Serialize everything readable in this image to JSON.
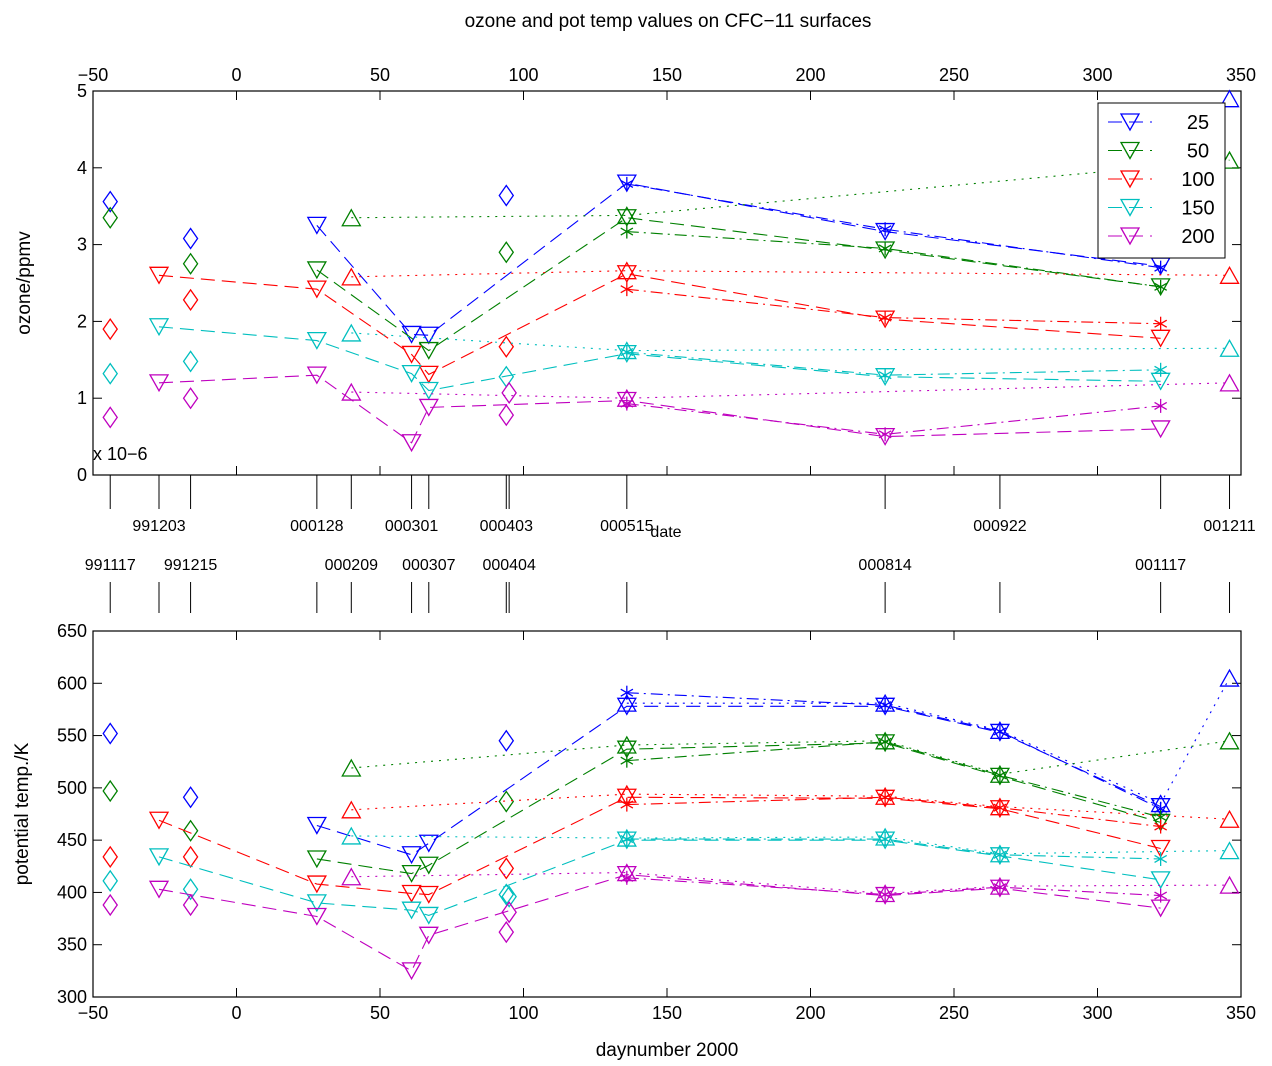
{
  "figure": {
    "title": "ozone and pot temp values on CFC−11 surfaces",
    "date_axis_label": "date"
  },
  "colors": {
    "25": "#0000ff",
    "50": "#008000",
    "100": "#ff0000",
    "150": "#00bfbf",
    "200": "#bf00bf"
  },
  "legend": {
    "position": "top-right",
    "entries": [
      "25",
      "50",
      "100",
      "150",
      "200"
    ],
    "marker": "down-triangle"
  },
  "date_ticks": {
    "days": [
      -44,
      -27,
      -16,
      28,
      40,
      61,
      67,
      94,
      95,
      136,
      226,
      266,
      322,
      346
    ],
    "upper_labels": [
      {
        "day": -27,
        "text": "991203"
      },
      {
        "day": 28,
        "text": "000128"
      },
      {
        "day": 61,
        "text": "000301"
      },
      {
        "day": 94,
        "text": "000403"
      },
      {
        "day": 136,
        "text": "000515"
      },
      {
        "day": 266,
        "text": "000922"
      },
      {
        "day": 346,
        "text": "001211"
      }
    ],
    "lower_labels": [
      {
        "day": -44,
        "text": "991117"
      },
      {
        "day": -16,
        "text": "991215"
      },
      {
        "day": 40,
        "text": "000209"
      },
      {
        "day": 67,
        "text": "000307"
      },
      {
        "day": 95,
        "text": "000404"
      },
      {
        "day": 226,
        "text": "000814"
      },
      {
        "day": 322,
        "text": "001117"
      }
    ]
  },
  "chart_data": [
    {
      "type": "line",
      "ylabel": "ozone/ppmv",
      "xlim": [
        -50,
        350
      ],
      "ylim": [
        0,
        5
      ],
      "y_multiplier_label": "x 10−6",
      "x_ticks": [
        "−50",
        "0",
        "50",
        "100",
        "150",
        "200",
        "250",
        "300",
        "350"
      ],
      "y_ticks": [
        "0",
        "1",
        "2",
        "3",
        "4",
        "5"
      ],
      "series": [
        {
          "name": "25",
          "down": [
            [
              28,
              3.25
            ],
            [
              61,
              1.83
            ],
            [
              67,
              1.82
            ],
            [
              136,
              3.8
            ],
            [
              226,
              3.17
            ],
            [
              322,
              2.72
            ]
          ],
          "up": [
            [
              346,
              4.9
            ]
          ],
          "diamond": [
            [
              -44,
              3.56
            ],
            [
              -16,
              3.08
            ],
            [
              94,
              3.64
            ]
          ],
          "star": [
            [
              136,
              3.79
            ],
            [
              226,
              3.2
            ],
            [
              322,
              2.7
            ]
          ]
        },
        {
          "name": "50",
          "down": [
            [
              28,
              2.67
            ],
            [
              67,
              1.62
            ],
            [
              136,
              3.35
            ],
            [
              226,
              2.93
            ],
            [
              322,
              2.45
            ]
          ],
          "up": [
            [
              40,
              3.35
            ],
            [
              136,
              3.38
            ],
            [
              346,
              4.1
            ]
          ],
          "diamond": [
            [
              -44,
              3.35
            ],
            [
              -16,
              2.75
            ],
            [
              94,
              2.9
            ]
          ],
          "star": [
            [
              136,
              3.17
            ],
            [
              226,
              2.95
            ],
            [
              322,
              2.45
            ]
          ]
        },
        {
          "name": "100",
          "down": [
            [
              -27,
              2.6
            ],
            [
              28,
              2.42
            ],
            [
              61,
              1.57
            ],
            [
              67,
              1.31
            ],
            [
              136,
              2.62
            ],
            [
              226,
              2.03
            ],
            [
              322,
              1.78
            ]
          ],
          "up": [
            [
              40,
              2.58
            ],
            [
              136,
              2.66
            ],
            [
              346,
              2.6
            ]
          ],
          "diamond": [
            [
              -44,
              1.9
            ],
            [
              -16,
              2.28
            ],
            [
              94,
              1.67
            ]
          ],
          "star": [
            [
              136,
              2.42
            ],
            [
              226,
              2.05
            ],
            [
              322,
              1.97
            ]
          ]
        },
        {
          "name": "150",
          "down": [
            [
              -27,
              1.93
            ],
            [
              28,
              1.75
            ],
            [
              61,
              1.32
            ],
            [
              67,
              1.1
            ],
            [
              136,
              1.58
            ],
            [
              226,
              1.28
            ],
            [
              322,
              1.22
            ]
          ],
          "up": [
            [
              40,
              1.85
            ],
            [
              136,
              1.62
            ],
            [
              346,
              1.65
            ]
          ],
          "diamond": [
            [
              -44,
              1.32
            ],
            [
              -16,
              1.48
            ],
            [
              94,
              1.28
            ]
          ],
          "star": [
            [
              136,
              1.6
            ],
            [
              226,
              1.3
            ],
            [
              322,
              1.37
            ]
          ]
        },
        {
          "name": "200",
          "down": [
            [
              -27,
              1.2
            ],
            [
              28,
              1.3
            ],
            [
              61,
              0.42
            ],
            [
              67,
              0.88
            ],
            [
              136,
              0.97
            ],
            [
              226,
              0.5
            ],
            [
              322,
              0.6
            ]
          ],
          "up": [
            [
              40,
              1.08
            ],
            [
              136,
              1.0
            ],
            [
              346,
              1.2
            ]
          ],
          "diamond": [
            [
              -44,
              0.75
            ],
            [
              -16,
              1.0
            ],
            [
              94,
              0.78
            ],
            [
              95,
              1.07
            ]
          ],
          "star": [
            [
              136,
              0.93
            ],
            [
              226,
              0.53
            ],
            [
              322,
              0.9
            ]
          ]
        }
      ]
    },
    {
      "type": "line",
      "xlabel": "daynumber 2000",
      "ylabel": "potential temp./K",
      "xlim": [
        -50,
        350
      ],
      "ylim": [
        300,
        650
      ],
      "x_ticks": [
        "−50",
        "0",
        "50",
        "100",
        "150",
        "200",
        "250",
        "300",
        "350"
      ],
      "y_ticks": [
        "300",
        "350",
        "400",
        "450",
        "500",
        "550",
        "600",
        "650"
      ],
      "series": [
        {
          "name": "25",
          "down": [
            [
              28,
              464
            ],
            [
              61,
              436
            ],
            [
              67,
              447
            ],
            [
              136,
              578
            ],
            [
              226,
              578
            ],
            [
              266,
              553
            ],
            [
              322,
              482
            ]
          ],
          "up": [
            [
              136,
              581
            ],
            [
              226,
              581
            ],
            [
              266,
              555
            ],
            [
              322,
              485
            ],
            [
              346,
              605
            ]
          ],
          "diamond": [
            [
              -44,
              552
            ],
            [
              -16,
              491
            ],
            [
              94,
              545
            ]
          ],
          "star": [
            [
              136,
              591
            ],
            [
              226,
              579
            ],
            [
              266,
              554
            ],
            [
              322,
              480
            ]
          ]
        },
        {
          "name": "50",
          "down": [
            [
              28,
              432
            ],
            [
              61,
              418
            ],
            [
              67,
              426
            ],
            [
              136,
              537
            ],
            [
              226,
              543
            ],
            [
              266,
              511
            ],
            [
              322,
              467
            ]
          ],
          "up": [
            [
              40,
              519
            ],
            [
              136,
              541
            ],
            [
              226,
              545
            ],
            [
              266,
              513
            ],
            [
              346,
              545
            ]
          ],
          "diamond": [
            [
              -44,
              497
            ],
            [
              -16,
              459
            ],
            [
              94,
              487
            ]
          ],
          "star": [
            [
              136,
              526
            ],
            [
              226,
              544
            ],
            [
              266,
              512
            ],
            [
              322,
              472
            ]
          ]
        },
        {
          "name": "100",
          "down": [
            [
              -27,
              469
            ],
            [
              28,
              408
            ],
            [
              61,
              399
            ],
            [
              67,
              398
            ],
            [
              136,
              491
            ],
            [
              226,
              490
            ],
            [
              266,
              480
            ],
            [
              322,
              442
            ]
          ],
          "up": [
            [
              40,
              479
            ],
            [
              136,
              494
            ],
            [
              226,
              492
            ],
            [
              266,
              482
            ],
            [
              346,
              470
            ]
          ],
          "diamond": [
            [
              -44,
              434
            ],
            [
              -16,
              434
            ],
            [
              94,
              423
            ]
          ],
          "star": [
            [
              136,
              484
            ],
            [
              226,
              491
            ],
            [
              266,
              481
            ],
            [
              322,
              463
            ]
          ]
        },
        {
          "name": "150",
          "down": [
            [
              -27,
              434
            ],
            [
              28,
              390
            ],
            [
              61,
              383
            ],
            [
              67,
              378
            ],
            [
              136,
              450
            ],
            [
              226,
              450
            ],
            [
              266,
              435
            ],
            [
              322,
              412
            ]
          ],
          "up": [
            [
              40,
              454
            ],
            [
              136,
              452
            ],
            [
              226,
              453
            ],
            [
              266,
              437
            ],
            [
              346,
              440
            ]
          ],
          "diamond": [
            [
              -44,
              411
            ],
            [
              -16,
              403
            ],
            [
              94,
              398
            ],
            [
              95,
              396
            ]
          ],
          "star": [
            [
              136,
              451
            ],
            [
              226,
              451
            ],
            [
              266,
              436
            ],
            [
              322,
              432
            ]
          ]
        },
        {
          "name": "200",
          "down": [
            [
              -27,
              403
            ],
            [
              28,
              377
            ],
            [
              61,
              325
            ],
            [
              67,
              359
            ],
            [
              136,
              417
            ],
            [
              226,
              397
            ],
            [
              266,
              404
            ],
            [
              322,
              385
            ]
          ],
          "up": [
            [
              40,
              415
            ],
            [
              136,
              419
            ],
            [
              226,
              399
            ],
            [
              266,
              406
            ],
            [
              346,
              407
            ]
          ],
          "diamond": [
            [
              -44,
              388
            ],
            [
              -16,
              388
            ],
            [
              94,
              362
            ],
            [
              95,
              381
            ]
          ],
          "star": [
            [
              136,
              414
            ],
            [
              226,
              398
            ],
            [
              266,
              405
            ],
            [
              322,
              397
            ]
          ]
        }
      ]
    }
  ]
}
